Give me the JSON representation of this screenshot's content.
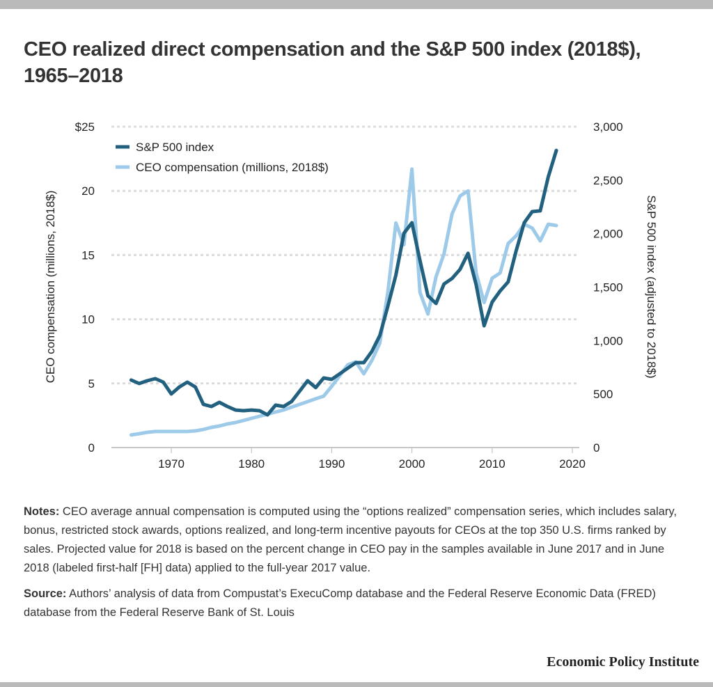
{
  "title": "CEO realized direct compensation and the S&P 500 index (2018$), 1965–2018",
  "chart_data": {
    "type": "line",
    "title": "CEO realized direct compensation and the S&P 500 index (2018$), 1965–2018",
    "xlabel": "",
    "ylabel": "CEO compensation (millions, 2018$)",
    "y2label": "S&P 500 index (adjusted to 2018$)",
    "xlim": [
      1963,
      2021
    ],
    "ylim": [
      0,
      25
    ],
    "y2lim": [
      0,
      3000
    ],
    "xticks": [
      1970,
      1980,
      1990,
      2000,
      2010,
      2020
    ],
    "xtick_labels": [
      "1970",
      "1980",
      "1990",
      "2000",
      "2010",
      "2020"
    ],
    "yticks": [
      0,
      5,
      10,
      15,
      20,
      25
    ],
    "ytick_labels": [
      "0",
      "5",
      "10",
      "15",
      "20",
      "$25"
    ],
    "y2ticks": [
      0,
      500,
      1000,
      1500,
      2000,
      2500,
      3000
    ],
    "y2tick_labels": [
      "0",
      "500",
      "1,000",
      "1,500",
      "2,000",
      "2,500",
      "3,000"
    ],
    "grid": "horizontal dotted",
    "legend_position": "top-left",
    "x": [
      1965,
      1966,
      1967,
      1968,
      1969,
      1970,
      1971,
      1972,
      1973,
      1974,
      1975,
      1976,
      1977,
      1978,
      1979,
      1980,
      1981,
      1982,
      1983,
      1984,
      1985,
      1986,
      1987,
      1988,
      1989,
      1990,
      1991,
      1992,
      1993,
      1994,
      1995,
      1996,
      1997,
      1998,
      1999,
      2000,
      2001,
      2002,
      2003,
      2004,
      2005,
      2006,
      2007,
      2008,
      2009,
      2010,
      2011,
      2012,
      2013,
      2014,
      2015,
      2016,
      2017,
      2018
    ],
    "series": [
      {
        "name": "S&P 500 index",
        "axis": "right",
        "color": "#22607f",
        "values": [
          631,
          599,
          625,
          644,
          612,
          501,
          566,
          612,
          566,
          404,
          384,
          423,
          384,
          351,
          345,
          351,
          345,
          306,
          397,
          384,
          430,
          527,
          625,
          560,
          651,
          638,
          690,
          742,
          794,
          794,
          898,
          1048,
          1321,
          1614,
          2004,
          2102,
          1751,
          1419,
          1347,
          1529,
          1581,
          1666,
          1816,
          1523,
          1139,
          1360,
          1464,
          1549,
          1842,
          2102,
          2206,
          2213,
          2531,
          2778
        ]
      },
      {
        "name": "CEO compensation (millions, 2018$)",
        "axis": "left",
        "color": "#9ecae9",
        "values": [
          0.98,
          1.08,
          1.19,
          1.25,
          1.25,
          1.25,
          1.25,
          1.25,
          1.3,
          1.41,
          1.57,
          1.68,
          1.84,
          1.95,
          2.11,
          2.28,
          2.44,
          2.6,
          2.77,
          2.93,
          3.15,
          3.36,
          3.58,
          3.8,
          4.01,
          4.77,
          5.59,
          6.45,
          6.67,
          5.75,
          6.78,
          8.14,
          12.1,
          17.5,
          15.8,
          21.7,
          12.1,
          10.4,
          13.3,
          15.1,
          18.2,
          19.6,
          20.0,
          13.6,
          11.3,
          13.2,
          13.6,
          15.9,
          16.5,
          17.4,
          17.1,
          16.1,
          17.4,
          17.3
        ]
      }
    ]
  },
  "notes": {
    "notes_label": "Notes:",
    "notes_text": " CEO average annual compensation is computed using the “options realized” compensation series, which includes salary, bonus, restricted stock awards, options realized, and long-term incentive payouts for CEOs at the top 350 U.S. firms ranked by sales. Projected value for 2018 is based on the percent change in CEO pay in the samples available in June 2017 and in June 2018 (labeled first-half [FH] data) applied to the full-year 2017 value.",
    "source_label": "Source:",
    "source_text": " Authors’ analysis of data from Compustat’s ExecuComp database and the Federal Reserve Economic Data (FRED) database from the Federal Reserve Bank of St. Louis"
  },
  "brand": "Economic Policy Institute"
}
